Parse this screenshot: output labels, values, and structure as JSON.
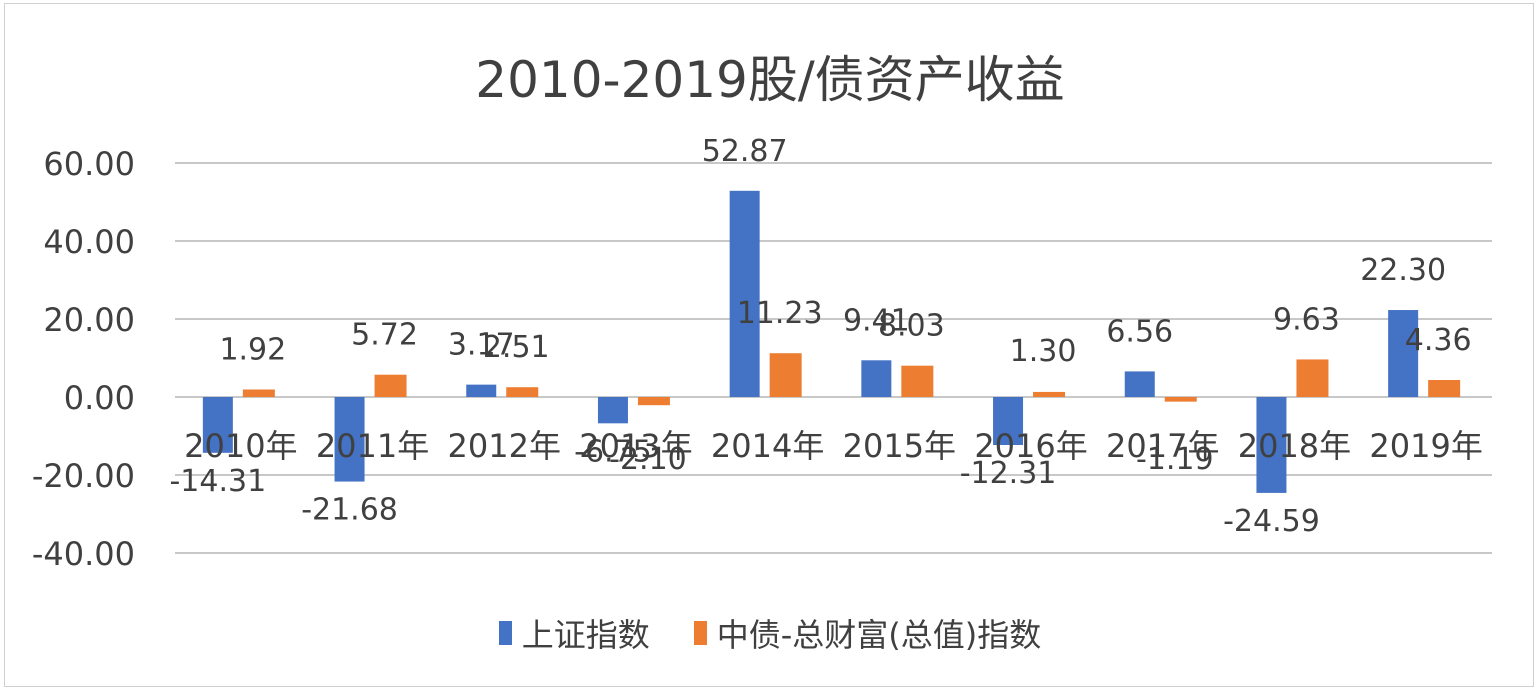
{
  "chart_data": {
    "type": "bar",
    "title": "2010-2019股/债资产收益",
    "xlabel": "",
    "ylabel": "",
    "ylim": [
      -40,
      60
    ],
    "yticks": [
      "60.00",
      "40.00",
      "20.00",
      "0.00",
      "-20.00",
      "-40.00"
    ],
    "grid": true,
    "legend_position": "bottom",
    "categories": [
      "2010年",
      "2011年",
      "2012年",
      "2013年",
      "2014年",
      "2015年",
      "2016年",
      "2017年",
      "2018年",
      "2019年"
    ],
    "series": [
      {
        "name": "上证指数",
        "color": "#4472c4",
        "values": [
          -14.31,
          -21.68,
          3.17,
          -6.75,
          52.87,
          9.41,
          -12.31,
          6.56,
          -24.59,
          22.3
        ]
      },
      {
        "name": "中债-总财富(总值)指数",
        "color": "#ed7d31",
        "values": [
          1.92,
          5.72,
          2.51,
          -2.1,
          11.23,
          8.03,
          1.3,
          -1.19,
          9.63,
          4.36
        ]
      }
    ]
  }
}
